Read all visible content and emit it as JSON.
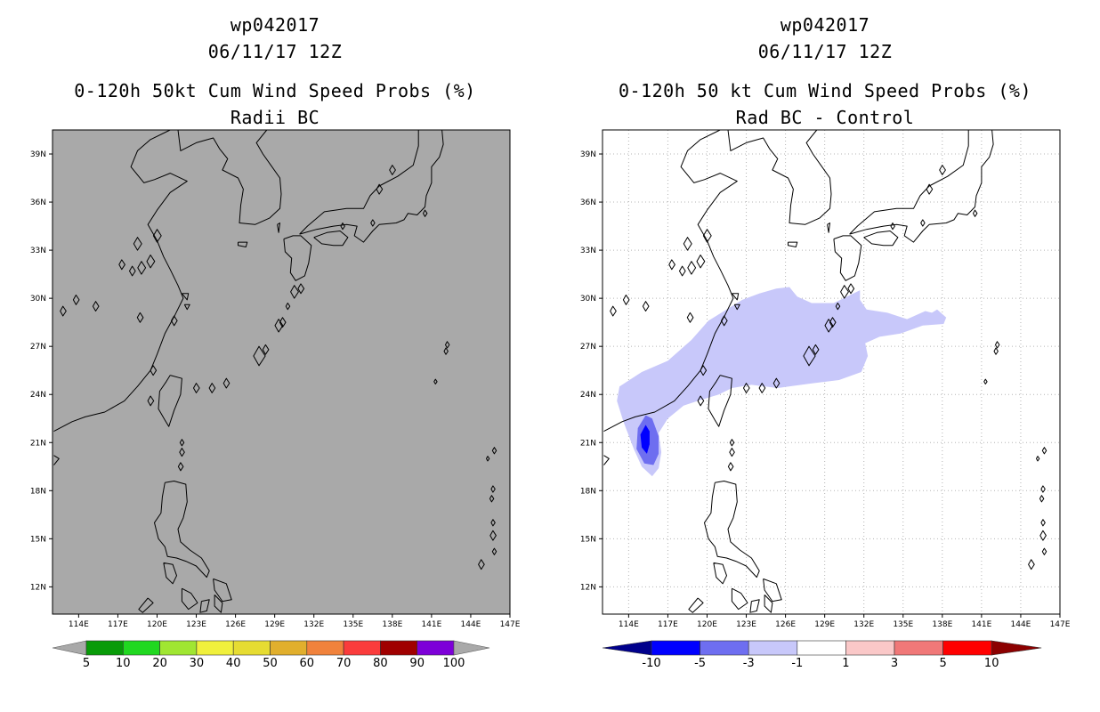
{
  "left_panel": {
    "title_line1": "wp042017",
    "title_line2": "06/11/17 12Z",
    "title_line3": "0-120h 50kt Cum Wind Speed Probs (%)",
    "title_line4": "Radii BC",
    "map_background": "#a9a9a9",
    "colorbar": {
      "colors": [
        "#089b08",
        "#20d820",
        "#a0e632",
        "#f0f03c",
        "#e6dc32",
        "#e1af2d",
        "#f0823c",
        "#fa3c3c",
        "#a00000",
        "#7d00d8"
      ],
      "end_color": "#a9a9a9",
      "labels": [
        "5",
        "10",
        "20",
        "30",
        "40",
        "50",
        "60",
        "70",
        "80",
        "90",
        "100"
      ]
    }
  },
  "right_panel": {
    "title_line1": "wp042017",
    "title_line2": "06/11/17 12Z",
    "title_line3": "0-120h 50 kt Cum Wind Speed Probs (%)",
    "title_line4": "Rad BC - Control",
    "map_background": "#ffffff",
    "colorbar": {
      "colors": [
        "#0000ff",
        "#6e6ef0",
        "#c8c8fa",
        "#ffffff",
        "#fac8c8",
        "#f07878",
        "#ff0000"
      ],
      "low_end_color": "#00008c",
      "high_end_color": "#8c0000",
      "labels": [
        "-10",
        "-5",
        "-3",
        "-1",
        "1",
        "3",
        "5",
        "10"
      ]
    },
    "shading": {
      "light_color": "#c8c8fa",
      "medium_color": "#6e6ef0",
      "dark_color": "#0000ff"
    }
  },
  "map": {
    "lon_labels": [
      "114E",
      "117E",
      "120E",
      "123E",
      "126E",
      "129E",
      "132E",
      "135E",
      "138E",
      "141E",
      "144E",
      "147E"
    ],
    "lat_labels": [
      "39N",
      "36N",
      "33N",
      "30N",
      "27N",
      "24N",
      "21N",
      "18N",
      "15N",
      "12N"
    ],
    "lon_range": [
      112,
      147
    ],
    "lat_range": [
      10.3,
      40.5
    ]
  }
}
